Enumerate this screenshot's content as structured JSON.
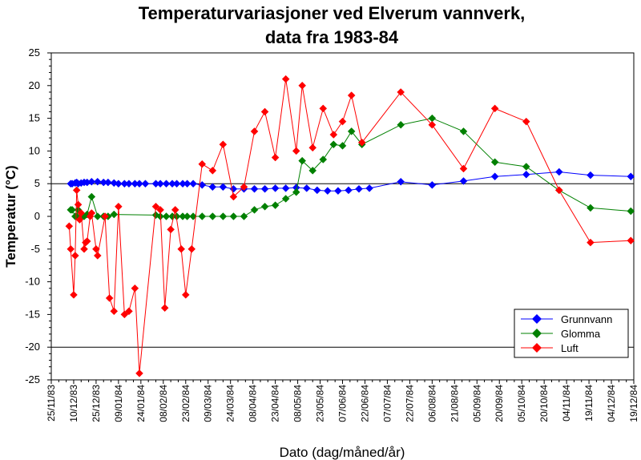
{
  "chart_data": {
    "type": "line",
    "title_lines": [
      "Temperaturvariasjoner ved Elverum vannverk,",
      "data fra 1983-84"
    ],
    "xlabel": "Dato (dag/måned/år)",
    "ylabel": "Temperatur (°C)",
    "ylim": [
      -25,
      25
    ],
    "ytick_step": 5,
    "reference_lines": [
      5,
      -20
    ],
    "x_axis_start": "1983-11-25",
    "x_axis_end": "1984-12-19",
    "x_tick_labels": [
      "25/11/83",
      "10/12/83",
      "25/12/83",
      "09/01/84",
      "24/01/84",
      "08/02/84",
      "23/02/84",
      "09/03/84",
      "24/03/84",
      "08/04/84",
      "23/04/84",
      "08/05/84",
      "23/05/84",
      "07/06/84",
      "22/06/84",
      "07/07/84",
      "22/07/84",
      "06/08/84",
      "21/08/84",
      "05/09/84",
      "20/09/84",
      "05/10/84",
      "20/10/84",
      "04/11/84",
      "19/11/84",
      "04/12/84",
      "19/12/84"
    ],
    "legend_position": "bottom-right",
    "series": [
      {
        "name": "Grunnvann",
        "color": "#0000ff",
        "points": [
          [
            "1983-12-08",
            5.0
          ],
          [
            "1983-12-09",
            5.0
          ],
          [
            "1983-12-11",
            5.1
          ],
          [
            "1983-12-12",
            5.2
          ],
          [
            "1983-12-13",
            5.0
          ],
          [
            "1983-12-15",
            5.1
          ],
          [
            "1983-12-17",
            5.2
          ],
          [
            "1983-12-19",
            5.2
          ],
          [
            "1983-12-22",
            5.3
          ],
          [
            "1983-12-26",
            5.3
          ],
          [
            "1983-12-30",
            5.2
          ],
          [
            "1984-01-02",
            5.2
          ],
          [
            "1984-01-06",
            5.1
          ],
          [
            "1984-01-09",
            5.0
          ],
          [
            "1984-01-13",
            5.0
          ],
          [
            "1984-01-16",
            5.0
          ],
          [
            "1984-01-20",
            5.0
          ],
          [
            "1984-01-23",
            5.0
          ],
          [
            "1984-01-27",
            5.0
          ],
          [
            "1984-02-03",
            5.0
          ],
          [
            "1984-02-06",
            5.0
          ],
          [
            "1984-02-10",
            5.0
          ],
          [
            "1984-02-14",
            5.0
          ],
          [
            "1984-02-17",
            5.0
          ],
          [
            "1984-02-21",
            5.0
          ],
          [
            "1984-02-24",
            5.0
          ],
          [
            "1984-02-28",
            5.0
          ],
          [
            "1984-03-05",
            4.8
          ],
          [
            "1984-03-12",
            4.5
          ],
          [
            "1984-03-19",
            4.5
          ],
          [
            "1984-03-26",
            4.2
          ],
          [
            "1984-04-02",
            4.2
          ],
          [
            "1984-04-09",
            4.2
          ],
          [
            "1984-04-16",
            4.2
          ],
          [
            "1984-04-23",
            4.3
          ],
          [
            "1984-04-30",
            4.3
          ],
          [
            "1984-05-07",
            4.4
          ],
          [
            "1984-05-14",
            4.3
          ],
          [
            "1984-05-21",
            4.0
          ],
          [
            "1984-05-28",
            3.9
          ],
          [
            "1984-06-04",
            3.9
          ],
          [
            "1984-06-11",
            4.0
          ],
          [
            "1984-06-18",
            4.2
          ],
          [
            "1984-06-25",
            4.3
          ],
          [
            "1984-07-16",
            5.3
          ],
          [
            "1984-08-06",
            4.8
          ],
          [
            "1984-08-27",
            5.4
          ],
          [
            "1984-09-17",
            6.1
          ],
          [
            "1984-10-08",
            6.4
          ],
          [
            "1984-10-30",
            6.8
          ],
          [
            "1984-11-20",
            6.3
          ],
          [
            "1984-12-17",
            6.1
          ]
        ]
      },
      {
        "name": "Glomma",
        "color": "#008000",
        "points": [
          [
            "1983-12-08",
            1.0
          ],
          [
            "1983-12-09",
            1.0
          ],
          [
            "1983-12-11",
            0.0
          ],
          [
            "1983-12-12",
            0.0
          ],
          [
            "1983-12-13",
            1.0
          ],
          [
            "1983-12-15",
            0.0
          ],
          [
            "1983-12-17",
            0.0
          ],
          [
            "1983-12-19",
            0.3
          ],
          [
            "1983-12-22",
            3.0
          ],
          [
            "1983-12-26",
            0.0
          ],
          [
            "1983-12-30",
            0.0
          ],
          [
            "1984-01-02",
            0.0
          ],
          [
            "1984-01-06",
            0.3
          ],
          [
            "1984-02-03",
            0.2
          ],
          [
            "1984-02-06",
            0.0
          ],
          [
            "1984-02-10",
            0.0
          ],
          [
            "1984-02-14",
            0.0
          ],
          [
            "1984-02-17",
            0.0
          ],
          [
            "1984-02-21",
            0.0
          ],
          [
            "1984-02-24",
            0.0
          ],
          [
            "1984-02-28",
            0.0
          ],
          [
            "1984-03-05",
            0.0
          ],
          [
            "1984-03-12",
            0.0
          ],
          [
            "1984-03-19",
            0.0
          ],
          [
            "1984-03-26",
            0.0
          ],
          [
            "1984-04-02",
            0.0
          ],
          [
            "1984-04-09",
            1.0
          ],
          [
            "1984-04-16",
            1.5
          ],
          [
            "1984-04-23",
            1.7
          ],
          [
            "1984-04-30",
            2.7
          ],
          [
            "1984-05-07",
            3.7
          ],
          [
            "1984-05-11",
            8.5
          ],
          [
            "1984-05-18",
            7.0
          ],
          [
            "1984-05-25",
            8.7
          ],
          [
            "1984-06-01",
            11.0
          ],
          [
            "1984-06-07",
            10.8
          ],
          [
            "1984-06-13",
            13.0
          ],
          [
            "1984-06-20",
            11.0
          ],
          [
            "1984-07-16",
            14.0
          ],
          [
            "1984-08-06",
            15.0
          ],
          [
            "1984-08-27",
            13.0
          ],
          [
            "1984-09-17",
            8.3
          ],
          [
            "1984-10-08",
            7.6
          ],
          [
            "1984-10-30",
            4.0
          ],
          [
            "1984-11-20",
            1.3
          ],
          [
            "1984-12-17",
            0.8
          ]
        ]
      },
      {
        "name": "Luft",
        "color": "#ff0000",
        "points": [
          [
            "1983-12-07",
            -1.5
          ],
          [
            "1983-12-08",
            -5.0
          ],
          [
            "1983-12-10",
            -12.0
          ],
          [
            "1983-12-11",
            -6.0
          ],
          [
            "1983-12-12",
            4.0
          ],
          [
            "1983-12-13",
            1.8
          ],
          [
            "1983-12-14",
            -0.5
          ],
          [
            "1983-12-15",
            0.5
          ],
          [
            "1983-12-17",
            -5.0
          ],
          [
            "1983-12-18",
            -4.0
          ],
          [
            "1983-12-19",
            -3.8
          ],
          [
            "1983-12-21",
            0.0
          ],
          [
            "1983-12-22",
            0.5
          ],
          [
            "1983-12-25",
            -5.0
          ],
          [
            "1983-12-26",
            -6.0
          ],
          [
            "1983-12-31",
            0.0
          ],
          [
            "1984-01-03",
            -12.5
          ],
          [
            "1984-01-06",
            -14.5
          ],
          [
            "1984-01-09",
            1.5
          ],
          [
            "1984-01-13",
            -15.0
          ],
          [
            "1984-01-16",
            -14.5
          ],
          [
            "1984-01-20",
            -11.0
          ],
          [
            "1984-01-23",
            -24.0
          ],
          [
            "1984-02-03",
            1.5
          ],
          [
            "1984-02-06",
            1.0
          ],
          [
            "1984-02-09",
            -14.0
          ],
          [
            "1984-02-13",
            -2.0
          ],
          [
            "1984-02-16",
            1.0
          ],
          [
            "1984-02-20",
            -5.0
          ],
          [
            "1984-02-23",
            -12.0
          ],
          [
            "1984-02-27",
            -5.0
          ],
          [
            "1984-03-05",
            8.0
          ],
          [
            "1984-03-12",
            7.0
          ],
          [
            "1984-03-19",
            11.0
          ],
          [
            "1984-03-26",
            3.0
          ],
          [
            "1984-04-02",
            4.5
          ],
          [
            "1984-04-09",
            13.0
          ],
          [
            "1984-04-16",
            16.0
          ],
          [
            "1984-04-23",
            9.0
          ],
          [
            "1984-04-30",
            21.0
          ],
          [
            "1984-05-07",
            10.0
          ],
          [
            "1984-05-11",
            20.0
          ],
          [
            "1984-05-18",
            10.5
          ],
          [
            "1984-05-25",
            16.5
          ],
          [
            "1984-06-01",
            12.5
          ],
          [
            "1984-06-07",
            14.5
          ],
          [
            "1984-06-13",
            18.5
          ],
          [
            "1984-06-20",
            11.3
          ],
          [
            "1984-07-16",
            19.0
          ],
          [
            "1984-08-06",
            14.0
          ],
          [
            "1984-08-27",
            7.3
          ],
          [
            "1984-09-17",
            16.5
          ],
          [
            "1984-10-08",
            14.5
          ],
          [
            "1984-10-30",
            4.0
          ],
          [
            "1984-11-20",
            -4.0
          ],
          [
            "1984-12-17",
            -3.7
          ]
        ]
      }
    ]
  }
}
